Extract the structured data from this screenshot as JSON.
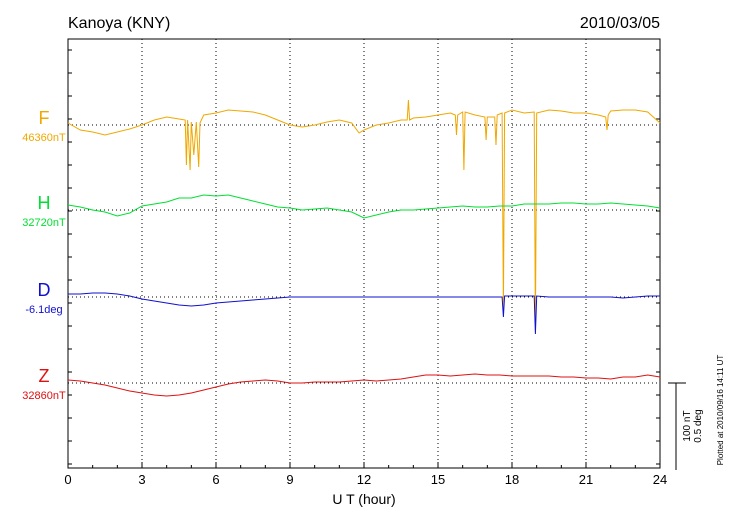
{
  "header": {
    "station": "Kanoya (KNY)",
    "date": "2010/03/05"
  },
  "footer": {
    "plotted_note": "Plotted at 2010/09/16 14:11 UT"
  },
  "chart_data": {
    "type": "line",
    "xlabel": "U T (hour)",
    "xlim": [
      0,
      24
    ],
    "xticks": [
      0,
      3,
      6,
      9,
      12,
      15,
      18,
      21,
      24
    ],
    "grid": true,
    "scale_bar": {
      "label_nt": "100 nT",
      "label_deg": "0.5 deg"
    },
    "series": [
      {
        "name": "F",
        "baseline_label": "46360nT",
        "color": "#f0a800",
        "points": [
          [
            0,
            -2
          ],
          [
            0.5,
            5
          ],
          [
            1,
            7
          ],
          [
            1.5,
            10
          ],
          [
            2,
            7
          ],
          [
            2.5,
            4
          ],
          [
            3,
            0
          ],
          [
            3.5,
            -5
          ],
          [
            4,
            -8
          ],
          [
            4.5,
            -6
          ],
          [
            4.75,
            -5
          ],
          [
            4.8,
            40
          ],
          [
            4.85,
            -5
          ],
          [
            4.95,
            45
          ],
          [
            5.0,
            -3
          ],
          [
            5.1,
            30
          ],
          [
            5.2,
            -3
          ],
          [
            5.3,
            42
          ],
          [
            5.35,
            -2
          ],
          [
            5.5,
            -10
          ],
          [
            6,
            -12
          ],
          [
            6.5,
            -15
          ],
          [
            7,
            -14
          ],
          [
            7.5,
            -13
          ],
          [
            8,
            -10
          ],
          [
            8.5,
            -5
          ],
          [
            9,
            0
          ],
          [
            9.5,
            2
          ],
          [
            10,
            0
          ],
          [
            10.5,
            -3
          ],
          [
            11,
            -5
          ],
          [
            11.5,
            -2
          ],
          [
            11.8,
            8
          ],
          [
            12,
            5
          ],
          [
            12.5,
            0
          ],
          [
            13,
            -2
          ],
          [
            13.5,
            -5
          ],
          [
            13.75,
            -5
          ],
          [
            13.8,
            -25
          ],
          [
            13.85,
            -5
          ],
          [
            14,
            -7
          ],
          [
            14.5,
            -8
          ],
          [
            15,
            -10
          ],
          [
            15.5,
            -12
          ],
          [
            15.7,
            -10
          ],
          [
            15.75,
            10
          ],
          [
            15.8,
            -10
          ],
          [
            16,
            -13
          ],
          [
            16.05,
            45
          ],
          [
            16.1,
            -13
          ],
          [
            16.5,
            -10
          ],
          [
            16.9,
            -8
          ],
          [
            16.95,
            15
          ],
          [
            17,
            -8
          ],
          [
            17.3,
            -8
          ],
          [
            17.35,
            20
          ],
          [
            17.4,
            -10
          ],
          [
            17.6,
            -12
          ],
          [
            17.65,
            185
          ],
          [
            17.7,
            -12
          ],
          [
            18,
            -15
          ],
          [
            18.5,
            -12
          ],
          [
            18.9,
            -13
          ],
          [
            18.95,
            205
          ],
          [
            19.0,
            -12
          ],
          [
            19.5,
            -15
          ],
          [
            20,
            -14
          ],
          [
            20.5,
            -12
          ],
          [
            21,
            -12
          ],
          [
            21.5,
            -10
          ],
          [
            21.8,
            -8
          ],
          [
            21.85,
            5
          ],
          [
            21.9,
            -10
          ],
          [
            22,
            -14
          ],
          [
            22.5,
            -15
          ],
          [
            23,
            -15
          ],
          [
            23.5,
            -13
          ],
          [
            24,
            -2
          ]
        ]
      },
      {
        "name": "H",
        "baseline_label": "32720nT",
        "color": "#00e030",
        "points": [
          [
            0,
            -5
          ],
          [
            0.5,
            -3
          ],
          [
            1,
            0
          ],
          [
            1.5,
            2
          ],
          [
            2,
            6
          ],
          [
            2.5,
            3
          ],
          [
            3,
            -4
          ],
          [
            3.5,
            -6
          ],
          [
            4,
            -8
          ],
          [
            4.5,
            -12
          ],
          [
            5,
            -12
          ],
          [
            5.5,
            -15
          ],
          [
            6,
            -14
          ],
          [
            6.5,
            -15
          ],
          [
            7,
            -12
          ],
          [
            7.5,
            -9
          ],
          [
            8,
            -6
          ],
          [
            8.5,
            -3
          ],
          [
            9,
            -2
          ],
          [
            9.5,
            0
          ],
          [
            10,
            -1
          ],
          [
            10.5,
            -2
          ],
          [
            11,
            0
          ],
          [
            11.5,
            2
          ],
          [
            12,
            8
          ],
          [
            12.5,
            5
          ],
          [
            13,
            2
          ],
          [
            13.5,
            0
          ],
          [
            14,
            0
          ],
          [
            14.5,
            -1
          ],
          [
            15,
            -2
          ],
          [
            15.5,
            -3
          ],
          [
            16,
            -4
          ],
          [
            16.5,
            -3
          ],
          [
            17,
            -3
          ],
          [
            17.5,
            -4
          ],
          [
            18,
            -4
          ],
          [
            18.5,
            -6
          ],
          [
            19,
            -6
          ],
          [
            19.5,
            -6
          ],
          [
            20,
            -7
          ],
          [
            20.5,
            -7
          ],
          [
            21,
            -6
          ],
          [
            21.5,
            -6
          ],
          [
            22,
            -7
          ],
          [
            22.5,
            -6
          ],
          [
            23,
            -5
          ],
          [
            23.5,
            -4
          ],
          [
            24,
            -2
          ]
        ]
      },
      {
        "name": "D",
        "baseline_label": "-6.1deg",
        "color": "#1010d0",
        "points": [
          [
            0,
            -3
          ],
          [
            0.5,
            -3
          ],
          [
            1,
            -4
          ],
          [
            1.5,
            -4
          ],
          [
            2,
            -3
          ],
          [
            2.5,
            -1
          ],
          [
            3,
            2
          ],
          [
            3.5,
            4
          ],
          [
            4,
            6
          ],
          [
            4.5,
            8
          ],
          [
            5,
            9
          ],
          [
            5.5,
            8
          ],
          [
            6,
            6
          ],
          [
            6.5,
            5
          ],
          [
            7,
            4
          ],
          [
            7.5,
            3
          ],
          [
            8,
            2
          ],
          [
            8.5,
            1
          ],
          [
            9,
            0
          ],
          [
            10,
            0
          ],
          [
            11,
            0
          ],
          [
            12,
            0
          ],
          [
            13,
            0
          ],
          [
            14,
            0
          ],
          [
            15,
            0
          ],
          [
            16,
            0
          ],
          [
            17,
            0
          ],
          [
            17.6,
            0
          ],
          [
            17.65,
            20
          ],
          [
            17.7,
            -1
          ],
          [
            18,
            -1
          ],
          [
            18.9,
            -1
          ],
          [
            18.95,
            37
          ],
          [
            19.0,
            -1
          ],
          [
            19.5,
            0
          ],
          [
            20,
            0
          ],
          [
            21,
            0
          ],
          [
            21.5,
            0
          ],
          [
            22,
            0
          ],
          [
            22.5,
            1
          ],
          [
            23,
            0
          ],
          [
            23.5,
            -1
          ],
          [
            24,
            -1
          ]
        ]
      },
      {
        "name": "Z",
        "baseline_label": "32860nT",
        "color": "#e01010",
        "points": [
          [
            0,
            -3
          ],
          [
            0.5,
            -2
          ],
          [
            1,
            0
          ],
          [
            1.5,
            2
          ],
          [
            2,
            5
          ],
          [
            2.5,
            8
          ],
          [
            3,
            10
          ],
          [
            3.5,
            12
          ],
          [
            4,
            13
          ],
          [
            4.5,
            12
          ],
          [
            5,
            10
          ],
          [
            5.5,
            7
          ],
          [
            6,
            4
          ],
          [
            6.5,
            1
          ],
          [
            7,
            -1
          ],
          [
            7.5,
            -2
          ],
          [
            8,
            -3
          ],
          [
            8.5,
            -2
          ],
          [
            9,
            0
          ],
          [
            9.5,
            0
          ],
          [
            10,
            -1
          ],
          [
            10.5,
            -1
          ],
          [
            11,
            -1
          ],
          [
            11.5,
            -2
          ],
          [
            12,
            -3
          ],
          [
            12.5,
            -2
          ],
          [
            13,
            -3
          ],
          [
            13.5,
            -4
          ],
          [
            14,
            -6
          ],
          [
            14.5,
            -8
          ],
          [
            15,
            -8
          ],
          [
            15.5,
            -7
          ],
          [
            16,
            -8
          ],
          [
            16.5,
            -9
          ],
          [
            17,
            -8
          ],
          [
            17.5,
            -8
          ],
          [
            18,
            -7
          ],
          [
            18.5,
            -7
          ],
          [
            19,
            -7
          ],
          [
            19.5,
            -7
          ],
          [
            20,
            -6
          ],
          [
            20.5,
            -6
          ],
          [
            21,
            -5
          ],
          [
            21.5,
            -5
          ],
          [
            22,
            -4
          ],
          [
            22.5,
            -6
          ],
          [
            23,
            -6
          ],
          [
            23.5,
            -8
          ],
          [
            24,
            -6
          ]
        ]
      }
    ]
  }
}
